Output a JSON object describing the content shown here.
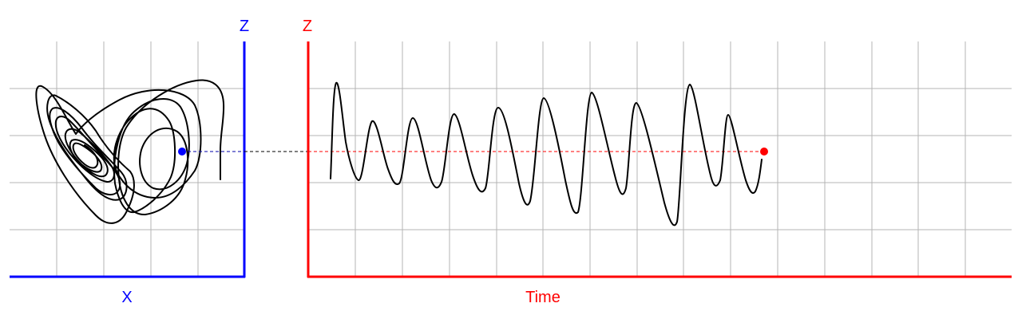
{
  "phase_panel": {
    "x_label": "X",
    "z_label": "Z",
    "axis_color": "#0000ff",
    "marker_color": "#0000ff"
  },
  "time_panel": {
    "x_label": "Time",
    "z_label": "Z",
    "axis_color": "#ff0000",
    "marker_color": "#ff0000"
  },
  "grid_color": "#b4b4b4",
  "trace_color": "#000000"
}
